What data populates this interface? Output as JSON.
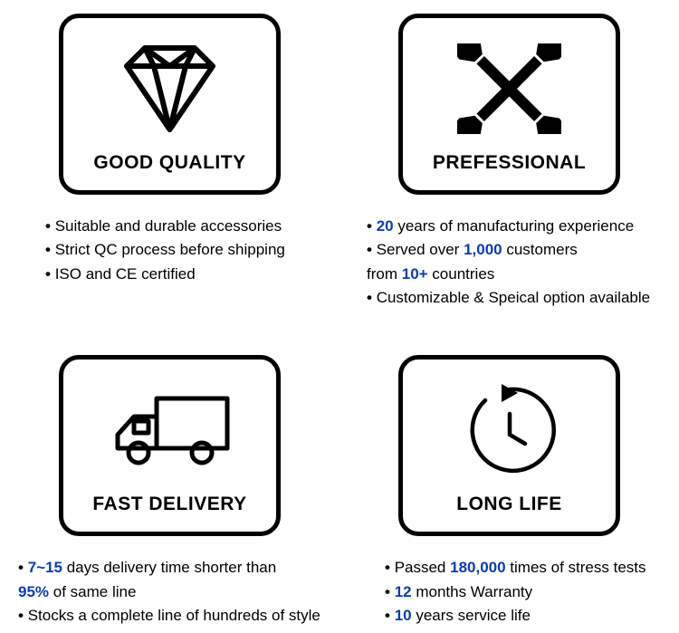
{
  "styling": {
    "background_color": "#ffffff",
    "card_border_color": "#000000",
    "card_border_width": 5,
    "card_border_radius": 22,
    "highlight_color": "#0a3db3",
    "text_color": "#000000",
    "title_fontsize": 21,
    "bullet_fontsize": 17,
    "icon_color": "#000000"
  },
  "cards": {
    "quality": {
      "title": "GOOD QUALITY",
      "icon": "diamond",
      "bullets": [
        {
          "pre": "Suitable and durable accessories"
        },
        {
          "pre": "Strict QC process before shipping"
        },
        {
          "pre": "ISO and CE certified"
        }
      ]
    },
    "professional": {
      "title": "PREFESSIONAL",
      "icon": "wrenches",
      "bullets": [
        {
          "hl": "20",
          "post": " years of manufacturing experience"
        },
        {
          "pre": "Served over ",
          "hl": "1,000",
          "post": " customers"
        },
        {
          "continuation": true,
          "pre": "from ",
          "hl": "10+",
          "post": " countries"
        },
        {
          "pre": "Customizable & Speical option available"
        }
      ]
    },
    "delivery": {
      "title": "FAST DELIVERY",
      "icon": "truck",
      "bullets": [
        {
          "hl": "7~15",
          "post": " days delivery time shorter than"
        },
        {
          "continuation": true,
          "hl": "95%",
          "post": " of same line"
        },
        {
          "pre": "Stocks a complete line of hundreds of style"
        }
      ]
    },
    "life": {
      "title": "LONG LIFE",
      "icon": "clock-arrow",
      "bullets": [
        {
          "pre": "Passed ",
          "hl": "180,000",
          "post": " times of stress tests"
        },
        {
          "hl": "12",
          "post": " months Warranty"
        },
        {
          "hl": "10",
          "post": " years service life"
        }
      ]
    }
  }
}
